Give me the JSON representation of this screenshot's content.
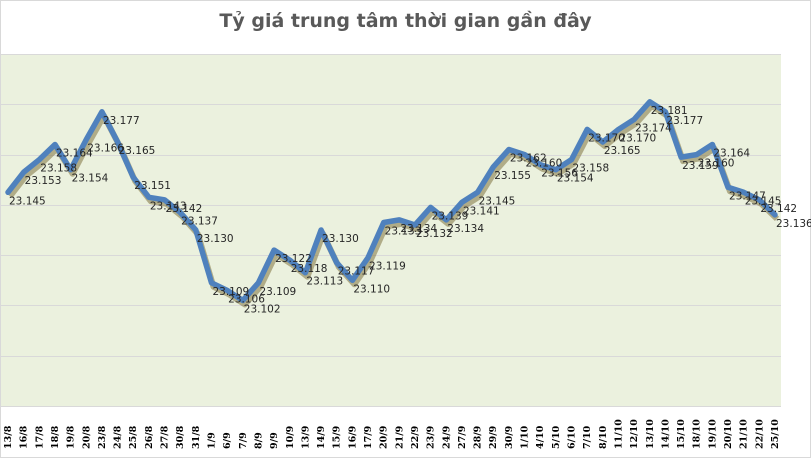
{
  "chart_data": {
    "type": "line",
    "title": "Tỷ giá trung tâm thời gian gần đây",
    "xlabel": "",
    "ylabel": "",
    "ylim": [
      23.06,
      23.2
    ],
    "grid": true,
    "legend": null,
    "categories": [
      "13/8",
      "16/8",
      "17/8",
      "18/8",
      "19/8",
      "20/8",
      "23/8",
      "24/8",
      "25/8",
      "26/8",
      "27/8",
      "30/8",
      "31/8",
      "1/9",
      "6/9",
      "7/9",
      "8/9",
      "9/9",
      "10/9",
      "13/9",
      "14/9",
      "15/9",
      "16/9",
      "17/9",
      "20/9",
      "21/9",
      "22/9",
      "23/9",
      "24/9",
      "27/9",
      "28/9",
      "29/9",
      "30/9",
      "1/10",
      "4/10",
      "5/10",
      "6/10",
      "7/10",
      "8/10",
      "11/10",
      "12/10",
      "13/10",
      "14/10",
      "15/10",
      "18/10",
      "19/10",
      "20/10",
      "21/10",
      "22/10",
      "25/10"
    ],
    "series": [
      {
        "name": "Tỷ giá trung tâm",
        "color": "#4f81bd",
        "values": [
          23.145,
          23.153,
          23.158,
          23.164,
          23.154,
          23.166,
          23.177,
          23.165,
          23.151,
          23.143,
          23.142,
          23.137,
          23.13,
          23.109,
          23.106,
          23.102,
          23.109,
          23.122,
          23.118,
          23.113,
          23.13,
          23.117,
          23.11,
          23.119,
          23.133,
          23.134,
          23.132,
          23.139,
          23.134,
          23.141,
          23.145,
          23.155,
          23.162,
          23.16,
          23.156,
          23.154,
          23.158,
          23.17,
          23.165,
          23.17,
          23.174,
          23.181,
          23.177,
          23.159,
          23.16,
          23.164,
          23.147,
          23.145,
          23.142,
          23.136
        ]
      }
    ]
  },
  "style": {
    "plot_bg": "#ebf1de",
    "grid_color": "#d9d9d9",
    "line_color": "#4f81bd",
    "shadow_color": "#7f7340"
  }
}
